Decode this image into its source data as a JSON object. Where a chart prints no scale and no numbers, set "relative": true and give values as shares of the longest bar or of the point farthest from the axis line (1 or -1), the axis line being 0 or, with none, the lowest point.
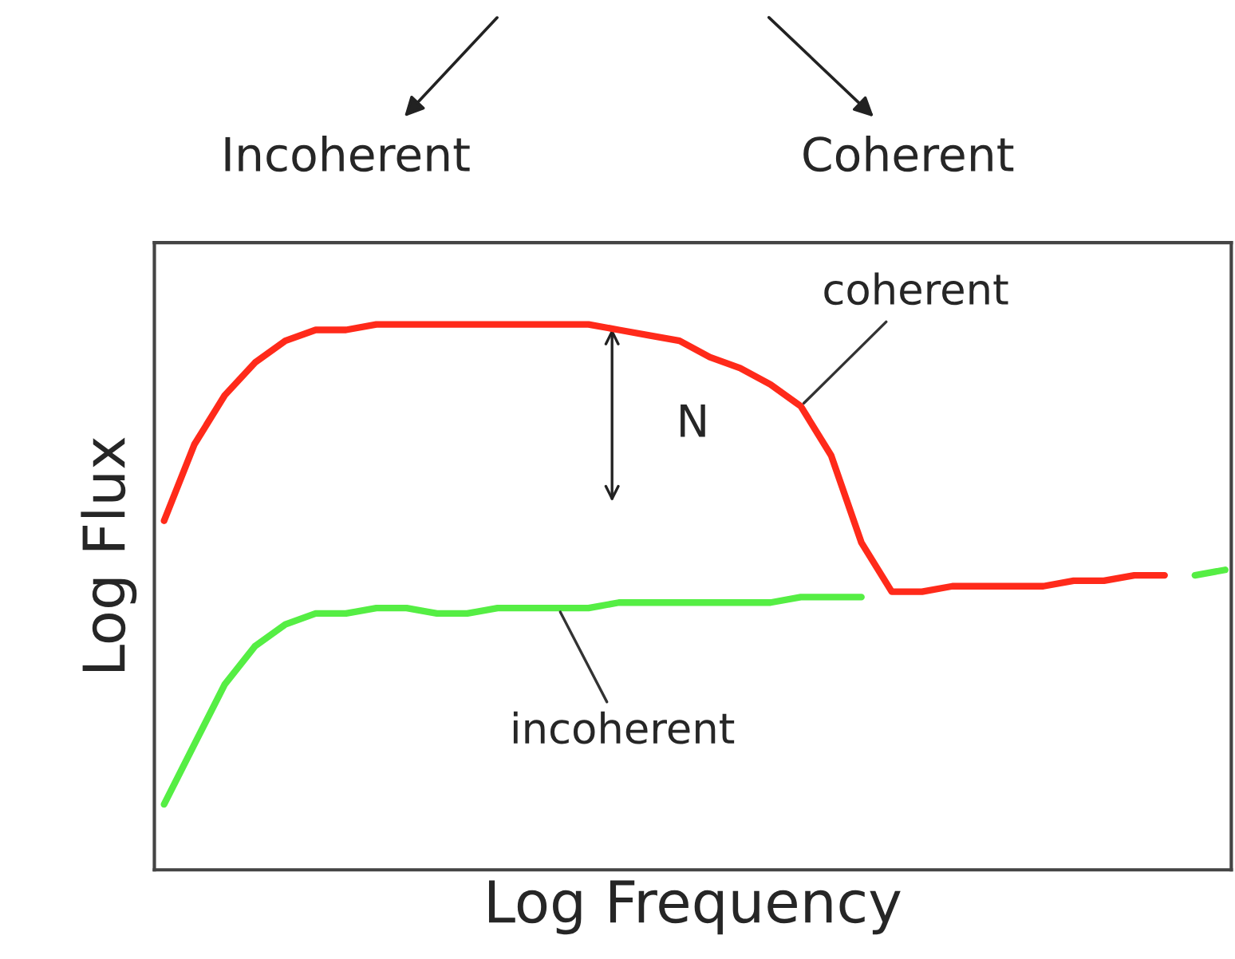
{
  "chart_data": {
    "type": "line",
    "relative": true,
    "xlabel": "Log Frequency",
    "ylabel": "Log Flux",
    "categories": [
      null,
      null,
      null,
      null,
      null,
      null,
      null,
      null,
      null,
      null,
      null,
      null,
      null,
      null,
      null,
      null,
      null,
      null,
      null,
      null,
      null,
      null,
      null,
      null,
      null,
      null,
      null,
      null,
      null,
      null,
      null,
      null,
      null,
      null,
      null,
      null
    ],
    "series": [
      {
        "name": "coherent",
        "color": "#ff2a1a",
        "values": [
          0.64,
          0.78,
          0.87,
          0.93,
          0.97,
          0.99,
          0.99,
          1.0,
          1.0,
          1.0,
          1.0,
          1.0,
          1.0,
          1.0,
          1.0,
          0.99,
          0.98,
          0.97,
          0.94,
          0.92,
          0.89,
          0.85,
          0.76,
          0.6,
          0.51,
          0.51,
          0.52,
          0.52,
          0.52,
          0.52,
          0.53,
          0.53,
          0.54,
          0.54,
          null,
          null
        ]
      },
      {
        "name": "incoherent",
        "color": "#55ee44",
        "values": [
          0.12,
          0.23,
          0.34,
          0.41,
          0.45,
          0.47,
          0.47,
          0.48,
          0.48,
          0.47,
          0.47,
          0.48,
          0.48,
          0.48,
          0.48,
          0.49,
          0.49,
          0.49,
          0.49,
          0.49,
          0.49,
          0.5,
          0.5,
          0.5,
          null,
          null,
          null,
          null,
          null,
          null,
          null,
          null,
          null,
          null,
          0.54,
          0.55
        ]
      }
    ],
    "annotations": [
      "Incoherent",
      "Coherent",
      "N"
    ],
    "grid": false,
    "legend": false
  }
}
